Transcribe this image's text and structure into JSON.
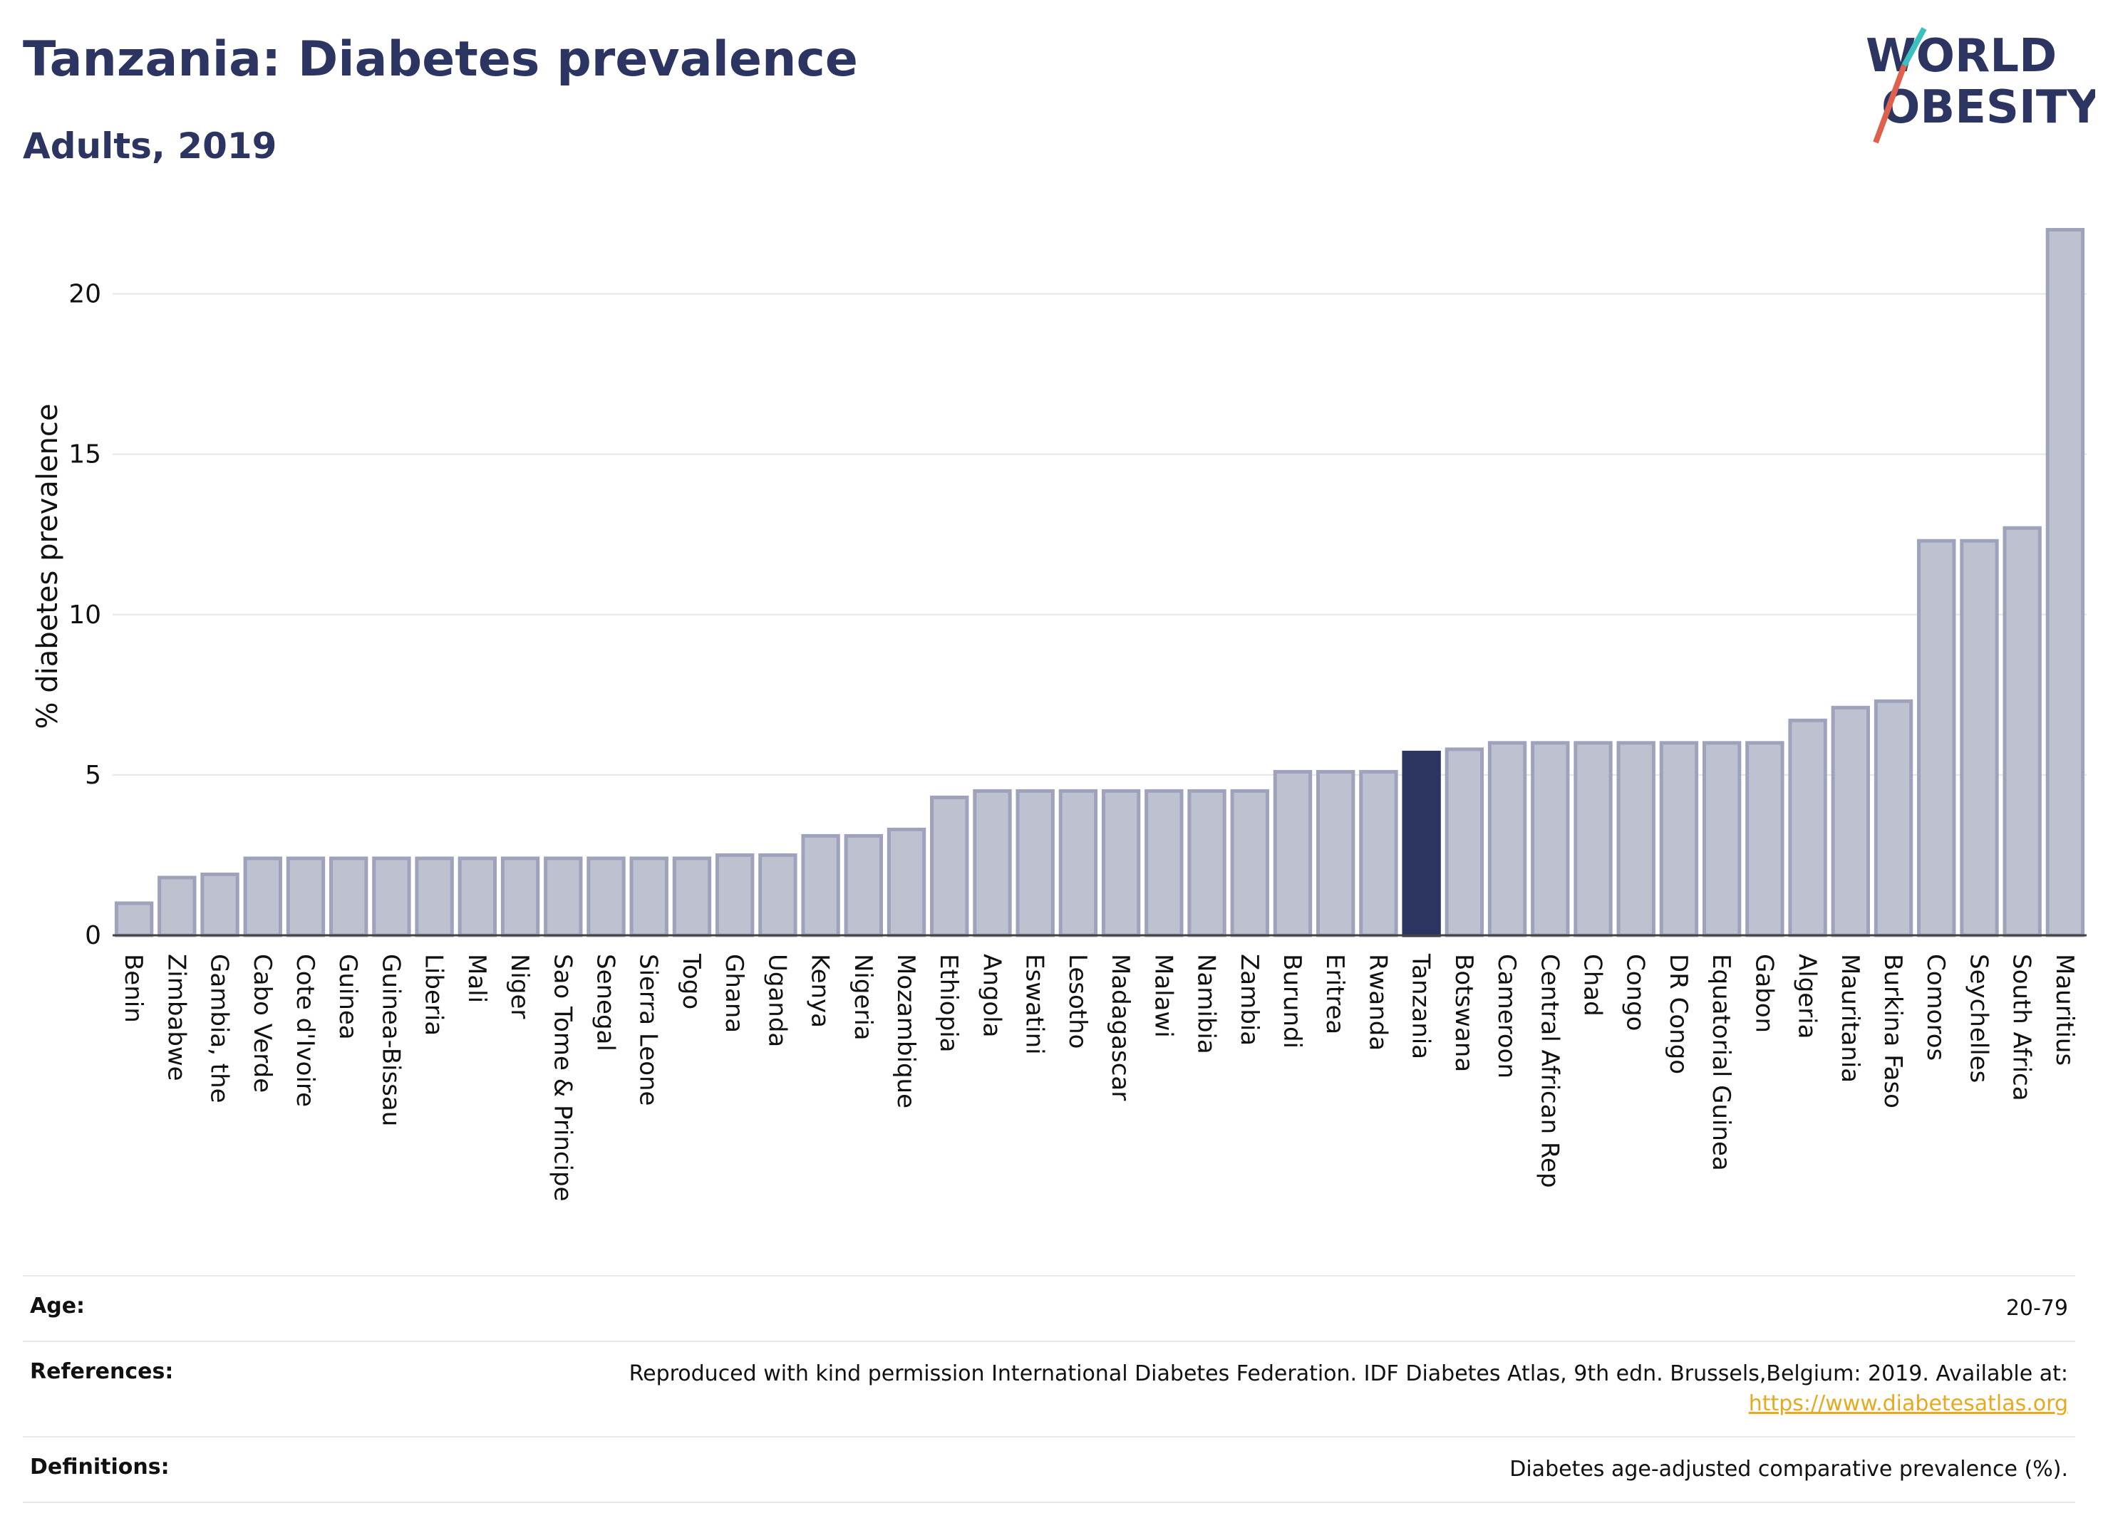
{
  "header": {
    "title": "Tanzania: Diabetes prevalence",
    "subtitle": "Adults, 2019"
  },
  "logo": {
    "line1": "WORLD",
    "line2": "OBESITY"
  },
  "chart_data": {
    "type": "bar",
    "title": "Tanzania: Diabetes prevalence",
    "subtitle": "Adults, 2019",
    "xlabel": "",
    "ylabel": "% diabetes prevalence",
    "ylim": [
      0,
      22.5
    ],
    "yticks": [
      0,
      5,
      10,
      15,
      20
    ],
    "grid": true,
    "highlight": "Tanzania",
    "colors": {
      "bar": "#bdc1d0",
      "bar_edge": "#9ea3bb",
      "highlight": "#2c3562"
    },
    "categories": [
      "Benin",
      "Zimbabwe",
      "Gambia, the",
      "Cabo Verde",
      "Cote d'Ivoire",
      "Guinea",
      "Guinea-Bissau",
      "Liberia",
      "Mali",
      "Niger",
      "Sao Tome & Principe",
      "Senegal",
      "Sierra Leone",
      "Togo",
      "Ghana",
      "Uganda",
      "Kenya",
      "Nigeria",
      "Mozambique",
      "Ethiopia",
      "Angola",
      "Eswatini",
      "Lesotho",
      "Madagascar",
      "Malawi",
      "Namibia",
      "Zambia",
      "Burundi",
      "Eritrea",
      "Rwanda",
      "Tanzania",
      "Botswana",
      "Cameroon",
      "Central African Rep",
      "Chad",
      "Congo",
      "DR Congo",
      "Equatorial Guinea",
      "Gabon",
      "Algeria",
      "Mauritania",
      "Burkina Faso",
      "Comoros",
      "Seychelles",
      "South Africa",
      "Mauritius"
    ],
    "values": [
      1.0,
      1.8,
      1.9,
      2.4,
      2.4,
      2.4,
      2.4,
      2.4,
      2.4,
      2.4,
      2.4,
      2.4,
      2.4,
      2.4,
      2.5,
      2.5,
      3.1,
      3.1,
      3.3,
      4.3,
      4.5,
      4.5,
      4.5,
      4.5,
      4.5,
      4.5,
      4.5,
      5.1,
      5.1,
      5.1,
      5.7,
      5.8,
      6.0,
      6.0,
      6.0,
      6.0,
      6.0,
      6.0,
      6.0,
      6.7,
      7.1,
      7.3,
      12.3,
      12.3,
      12.7,
      22.0
    ]
  },
  "info": {
    "age": {
      "label": "Age:",
      "value": "20-79"
    },
    "references": {
      "label": "References:",
      "value": "Reproduced with kind permission International Diabetes Federation. IDF Diabetes Atlas, 9th edn. Brussels,Belgium: 2019. Available at:",
      "link": "https://www.diabetesatlas.org"
    },
    "definitions": {
      "label": "Definitions:",
      "value": "Diabetes age-adjusted comparative prevalence (%)."
    }
  }
}
